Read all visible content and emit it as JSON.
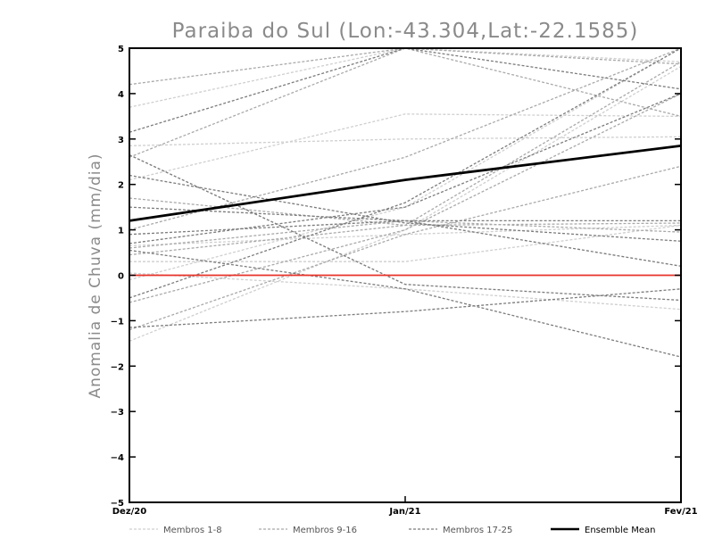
{
  "chart_data": {
    "type": "line",
    "title": "Paraiba do Sul (Lon:-43.304,Lat:-22.1585)",
    "xlabel": "",
    "ylabel": "Anomalia de Chuva (mm/dia)",
    "categories": [
      "Dez/20",
      "Jan/21",
      "Fev/21"
    ],
    "ylim": [
      -5,
      5
    ],
    "yticks": [
      -5,
      -4,
      -3,
      -2,
      -1,
      0,
      1,
      2,
      3,
      4,
      5
    ],
    "zero_line_color": "#e8332a",
    "grid": false,
    "legend_position": "bottom",
    "legend": [
      {
        "label": "Membros 1-8",
        "color": "#cfcfcf",
        "style": "dashed"
      },
      {
        "label": "Membros 9-16",
        "color": "#a9a9a9",
        "style": "dashed"
      },
      {
        "label": "Membros 17-25",
        "color": "#7c7c7c",
        "style": "dashed"
      },
      {
        "label": "Ensemble Mean",
        "color": "#000000",
        "style": "solid"
      }
    ],
    "series": [
      {
        "group": 1,
        "values": [
          3.7,
          5.0,
          4.7
        ]
      },
      {
        "group": 1,
        "values": [
          2.85,
          3.0,
          3.05
        ]
      },
      {
        "group": 1,
        "values": [
          2.1,
          3.55,
          3.5
        ]
      },
      {
        "group": 1,
        "values": [
          0.65,
          0.9,
          1.1
        ]
      },
      {
        "group": 1,
        "values": [
          0.3,
          0.3,
          1.1
        ]
      },
      {
        "group": 1,
        "values": [
          -0.1,
          1.5,
          5.0
        ]
      },
      {
        "group": 1,
        "values": [
          -1.45,
          1.0,
          4.6
        ]
      },
      {
        "group": 1,
        "values": [
          0.05,
          -0.3,
          -0.75
        ]
      },
      {
        "group": 2,
        "values": [
          4.2,
          5.0,
          4.65
        ]
      },
      {
        "group": 2,
        "values": [
          2.6,
          5.0,
          3.5
        ]
      },
      {
        "group": 2,
        "values": [
          1.7,
          1.1,
          1.15
        ]
      },
      {
        "group": 2,
        "values": [
          1.0,
          2.6,
          5.0
        ]
      },
      {
        "group": 2,
        "values": [
          0.6,
          1.2,
          0.95
        ]
      },
      {
        "group": 2,
        "values": [
          0.45,
          1.1,
          4.7
        ]
      },
      {
        "group": 2,
        "values": [
          -0.6,
          1.0,
          4.0
        ]
      },
      {
        "group": 2,
        "values": [
          -1.2,
          0.9,
          2.4
        ]
      },
      {
        "group": 3,
        "values": [
          3.15,
          5.0,
          4.1
        ]
      },
      {
        "group": 3,
        "values": [
          2.65,
          -0.2,
          -0.55
        ]
      },
      {
        "group": 3,
        "values": [
          2.2,
          1.15,
          0.75
        ]
      },
      {
        "group": 3,
        "values": [
          1.5,
          1.2,
          1.2
        ]
      },
      {
        "group": 3,
        "values": [
          0.9,
          1.2,
          0.2
        ]
      },
      {
        "group": 3,
        "values": [
          0.7,
          1.5,
          4.0
        ]
      },
      {
        "group": 3,
        "values": [
          -0.5,
          1.6,
          5.0
        ]
      },
      {
        "group": 3,
        "values": [
          -1.15,
          -0.8,
          -0.3
        ]
      },
      {
        "group": 3,
        "values": [
          0.55,
          -0.3,
          -1.8
        ]
      }
    ],
    "ensemble_mean": {
      "name": "Ensemble Mean",
      "values": [
        1.2,
        2.1,
        2.85
      ]
    }
  }
}
